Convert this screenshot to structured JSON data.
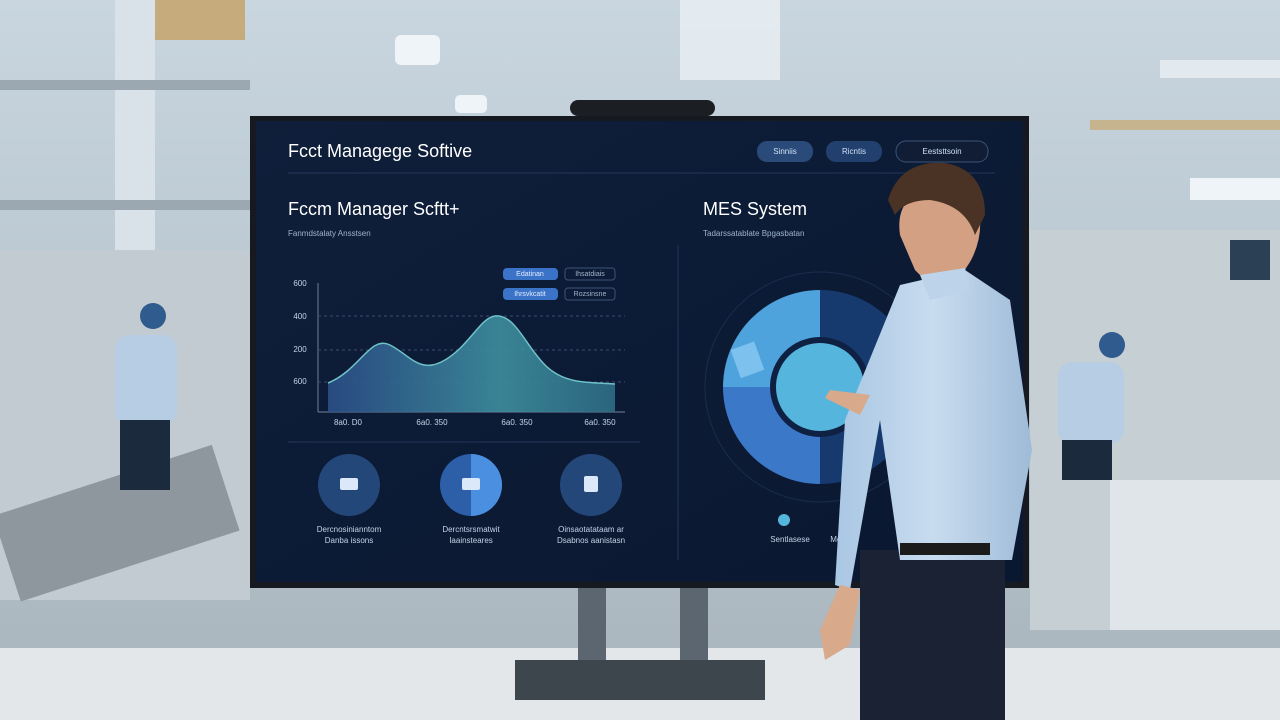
{
  "screen": {
    "title": "Fcct Managege Softive",
    "buttons": [
      "Sinniis",
      "Ricntis",
      "Eeststtsoin"
    ],
    "left_panel": {
      "title": "Fccm Manager Scftt+",
      "subtitle": "Fanmdstalaty Ansstsen",
      "legend": [
        "Edatinan",
        "Ihsatdiais",
        "Ihrsvkcatit",
        "Rozsinsne"
      ],
      "y_labels": [
        "600",
        "400",
        "200",
        "600"
      ],
      "x_labels": [
        "8a0. D0",
        "6a0. 350",
        "6a0. 350",
        "6a0. 350"
      ],
      "modules": [
        {
          "line1": "Dercnosinianntom",
          "line2": "Danba issons"
        },
        {
          "line1": "Dercntsrsmatwit",
          "line2": "Iaainsteares"
        },
        {
          "line1": "Oinsaotatataam ar",
          "line2": "Dsabnos aanistasn"
        }
      ]
    },
    "right_panel": {
      "title": "MES System",
      "subtitle": "Tadarssatablate Bpgasbatan",
      "legend": [
        "Sentlasese",
        "Meds"
      ]
    }
  }
}
